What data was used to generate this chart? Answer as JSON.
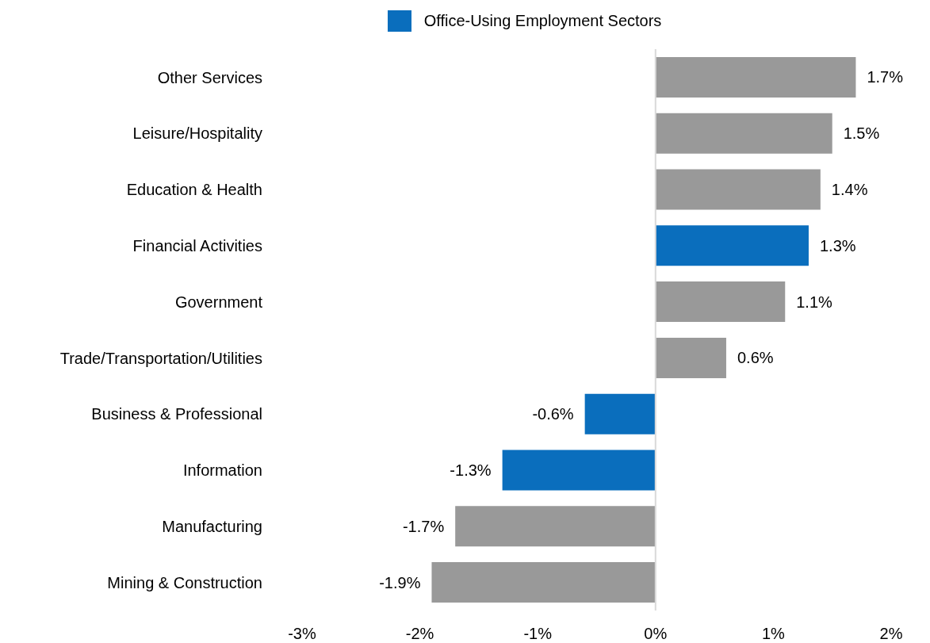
{
  "chart_data": {
    "type": "bar",
    "orientation": "horizontal",
    "stacked": true,
    "legend": "top",
    "categories": [
      "Other Services",
      "Leisure/Hospitality",
      "Education & Health",
      "Financial Activities",
      "Government",
      "Trade/Transportation/Utilities",
      "Business & Professional",
      "Information",
      "Manufacturing",
      "Mining & Construction"
    ],
    "series": [
      {
        "name": "Office-Using Employment Sectors",
        "color": "#0a6ebd",
        "values": [
          null,
          null,
          null,
          1.3,
          null,
          null,
          -0.6,
          -1.3,
          null,
          null
        ],
        "value_labels": [
          null,
          null,
          null,
          "1.3%",
          null,
          null,
          "-0.6%",
          "-1.3%",
          null,
          null
        ]
      },
      {
        "color": "#999999",
        "values": [
          1.7,
          1.5,
          1.4,
          null,
          1.1,
          0.6,
          null,
          null,
          -1.7,
          -1.9
        ],
        "value_labels": [
          "1.7%",
          "1.5%",
          "1.4%",
          null,
          "1.1%",
          "0.6%",
          null,
          null,
          "-1.7%",
          "-1.9%"
        ]
      }
    ],
    "xlim": [
      -3,
      2
    ],
    "xticks": [
      {
        "value": -3,
        "label": "-3%"
      },
      {
        "value": -2,
        "label": "-2%"
      },
      {
        "value": -1,
        "label": "-1%"
      },
      {
        "value": 0,
        "label": "0%"
      },
      {
        "value": 1,
        "label": "1%"
      },
      {
        "value": 2,
        "label": "2%"
      }
    ],
    "ref_lines": [
      {
        "axis": "x",
        "value": 0,
        "color": "#d9d9d9"
      }
    ]
  }
}
